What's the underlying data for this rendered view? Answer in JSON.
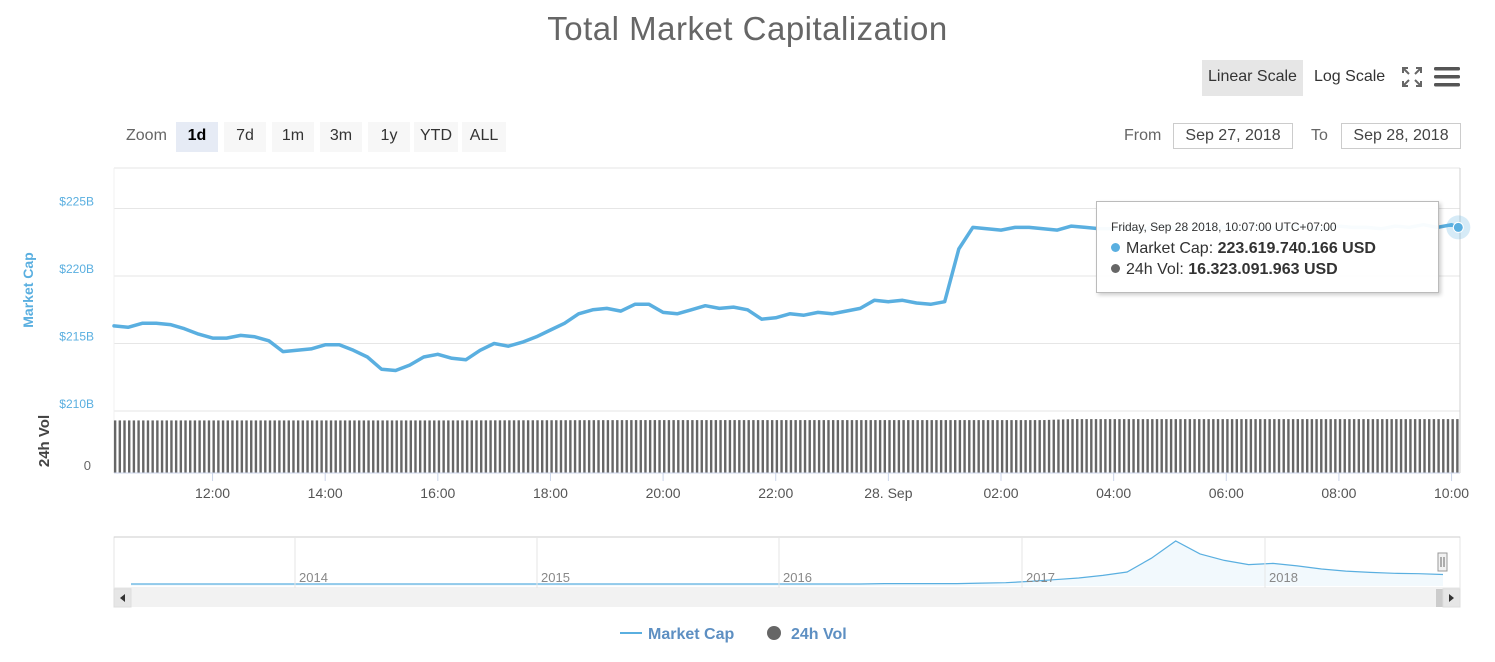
{
  "title": "Total Market Capitalization",
  "scale_buttons": {
    "linear": "Linear Scale",
    "log": "Log Scale"
  },
  "zoom": {
    "label": "Zoom",
    "buttons": [
      "1d",
      "7d",
      "1m",
      "3m",
      "1y",
      "YTD",
      "ALL"
    ],
    "active": "1d"
  },
  "range": {
    "from_label": "From",
    "from_value": "Sep 27, 2018",
    "to_label": "To",
    "to_value": "Sep 28, 2018"
  },
  "tooltip": {
    "date": "Friday, Sep 28 2018, 10:07:00 UTC+07:00",
    "market_cap_label": "Market Cap:",
    "market_cap_value": "223.619.740.166 USD",
    "vol_label": "24h Vol:",
    "vol_value": "16.323.091.963 USD"
  },
  "legend": {
    "market_cap": "Market Cap",
    "vol": "24h Vol"
  },
  "colors": {
    "market_cap": "#5aafe0",
    "vol": "#666666",
    "axis_label": "#5aafe0",
    "legend_text": "#5d8fc2"
  },
  "chart_data": {
    "type": "line",
    "title": "Total Market Capitalization",
    "ylabel": "Market Cap",
    "ylabel2": "24h Vol",
    "ylim": [
      210,
      228
    ],
    "y_ticks": [
      {
        "value": 210,
        "label": "$210B"
      },
      {
        "value": 215,
        "label": "$215B"
      },
      {
        "value": 220,
        "label": "$220B"
      },
      {
        "value": 225,
        "label": "$225B"
      }
    ],
    "vol_ticks": [
      {
        "value": 0,
        "label": "0"
      }
    ],
    "xlim": [
      10.25,
      34.15
    ],
    "x_ticks": [
      {
        "value": 12,
        "label": "12:00"
      },
      {
        "value": 14,
        "label": "14:00"
      },
      {
        "value": 16,
        "label": "16:00"
      },
      {
        "value": 18,
        "label": "18:00"
      },
      {
        "value": 20,
        "label": "20:00"
      },
      {
        "value": 22,
        "label": "22:00"
      },
      {
        "value": 24,
        "label": "28. Sep"
      },
      {
        "value": 26,
        "label": "02:00"
      },
      {
        "value": 28,
        "label": "04:00"
      },
      {
        "value": 30,
        "label": "06:00"
      },
      {
        "value": 32,
        "label": "08:00"
      },
      {
        "value": 34,
        "label": "10:00"
      }
    ],
    "series": [
      {
        "name": "Market Cap",
        "x": [
          10.25,
          10.5,
          10.75,
          11.0,
          11.25,
          11.5,
          11.75,
          12.0,
          12.25,
          12.5,
          12.75,
          13.0,
          13.25,
          13.5,
          13.75,
          14.0,
          14.25,
          14.5,
          14.75,
          15.0,
          15.25,
          15.5,
          15.75,
          16.0,
          16.25,
          16.5,
          16.75,
          17.0,
          17.25,
          17.5,
          17.75,
          18.0,
          18.25,
          18.5,
          18.75,
          19.0,
          19.25,
          19.5,
          19.75,
          20.0,
          20.25,
          20.5,
          20.75,
          21.0,
          21.25,
          21.5,
          21.75,
          22.0,
          22.25,
          22.5,
          22.75,
          23.0,
          23.25,
          23.5,
          23.75,
          24.0,
          24.25,
          24.5,
          24.75,
          25.0,
          25.25,
          25.5,
          25.75,
          26.0,
          26.25,
          26.5,
          26.75,
          27.0,
          27.25,
          27.5,
          27.75,
          28.0,
          28.25,
          28.5,
          28.75,
          29.0,
          29.25,
          29.5,
          29.75,
          30.0,
          30.25,
          30.5,
          30.75,
          31.0,
          31.25,
          31.5,
          31.75,
          32.0,
          32.25,
          32.5,
          32.75,
          33.0,
          33.25,
          33.5,
          33.75,
          34.0,
          34.12
        ],
        "values": [
          216.3,
          216.2,
          216.5,
          216.5,
          216.4,
          216.1,
          215.7,
          215.4,
          215.4,
          215.6,
          215.5,
          215.2,
          214.4,
          214.5,
          214.6,
          214.9,
          214.9,
          214.5,
          214.0,
          213.1,
          213.0,
          213.4,
          214.0,
          214.2,
          213.9,
          213.8,
          214.5,
          215.0,
          214.8,
          215.1,
          215.5,
          216.0,
          216.5,
          217.2,
          217.5,
          217.6,
          217.4,
          217.9,
          217.9,
          217.3,
          217.2,
          217.5,
          217.8,
          217.6,
          217.7,
          217.5,
          216.8,
          216.9,
          217.2,
          217.1,
          217.3,
          217.2,
          217.4,
          217.6,
          218.2,
          218.1,
          218.2,
          218.0,
          217.9,
          218.1,
          222.0,
          223.6,
          223.5,
          223.4,
          223.6,
          223.6,
          223.5,
          223.4,
          223.7,
          223.6,
          223.5,
          223.5,
          223.6,
          223.4,
          223.7,
          223.6,
          223.5,
          223.7,
          223.6,
          223.6,
          223.5,
          223.7,
          223.5,
          223.6,
          223.7,
          223.6,
          223.5,
          223.7,
          223.6,
          223.6,
          223.5,
          223.7,
          223.6,
          223.8,
          223.6,
          223.8,
          223.6
        ]
      },
      {
        "name": "24h Vol",
        "values_note_unit": "B USD",
        "x": [
          10.25,
          16.0,
          19.5,
          26.75,
          27.25,
          34.15
        ],
        "values": [
          15.9,
          15.9,
          16.0,
          16.0,
          16.3,
          16.3
        ]
      }
    ],
    "navigator": {
      "x_ticks": [
        "2014",
        "2015",
        "2016",
        "2017",
        "2018"
      ],
      "values": [
        0.0,
        0.0,
        0.0,
        0.0,
        0.0,
        0.0,
        0.0,
        0.0,
        0.0,
        0.0,
        0.0,
        0.0,
        0.0,
        0.0,
        0.0,
        0.0,
        0.0,
        0.0,
        0.0,
        0.0,
        0.0,
        0.0,
        0.0,
        0.0,
        0.0,
        0.0,
        0.0,
        0.0,
        0.0,
        0.0,
        0.0,
        0.01,
        0.01,
        0.01,
        0.01,
        0.02,
        0.03,
        0.06,
        0.1,
        0.14,
        0.2,
        0.28,
        0.6,
        1.0,
        0.7,
        0.55,
        0.45,
        0.48,
        0.42,
        0.35,
        0.3,
        0.27,
        0.25,
        0.24,
        0.22
      ]
    },
    "grid": true,
    "legend_position": "bottom-center"
  }
}
